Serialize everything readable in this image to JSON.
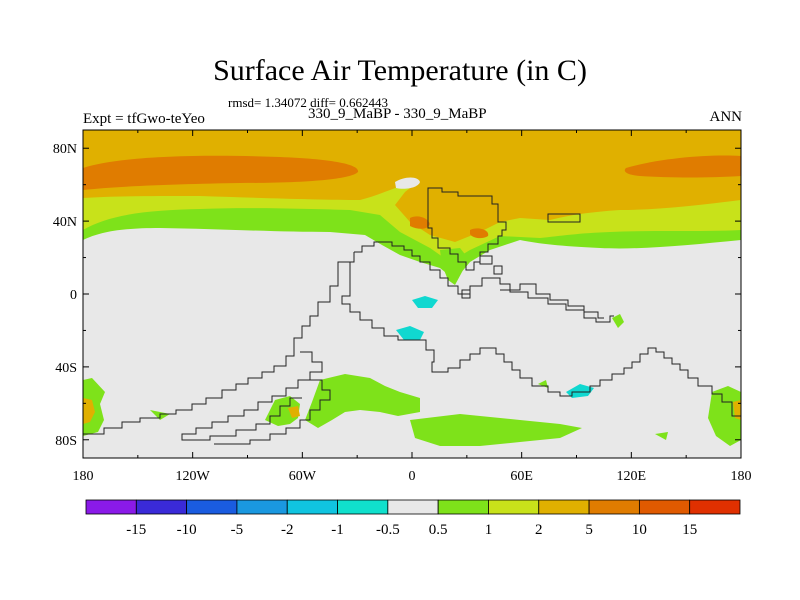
{
  "title": "Surface Air Temperature (in C)",
  "stats": "rmsd= 1.34072 diff= 0.662443",
  "subtitle": "330_9_MaBP - 330_9_MaBP",
  "experiment": "Expt = tfGwo-teYeo",
  "season": "ANN",
  "map": {
    "x_ticks": [
      "180",
      "120W",
      "60W",
      "0",
      "60E",
      "120E",
      "180"
    ],
    "y_ticks": [
      "80N",
      "40N",
      "0",
      "40S",
      "80S"
    ],
    "colors": {
      "neutral": "#e8e8e8",
      "c_0_5_to_1": "#7ee21a",
      "c_1_to_2": "#c8e21a",
      "c_2_to_5": "#e0b000",
      "c_5_to_10": "#e07c00",
      "c_minus1": "#10d8d0"
    }
  },
  "colorbar": {
    "labels": [
      "-15",
      "-10",
      "-5",
      "-2",
      "-1",
      "-0.5",
      "0.5",
      "1",
      "2",
      "5",
      "10",
      "15"
    ],
    "colors": [
      "#8a1ae8",
      "#3a2ad8",
      "#1a5ce0",
      "#1a98e0",
      "#10c4e0",
      "#10e0cc",
      "#e8e8e8",
      "#7ee21a",
      "#c8e21a",
      "#e0b000",
      "#e07c00",
      "#e05a00",
      "#e03000"
    ]
  }
}
